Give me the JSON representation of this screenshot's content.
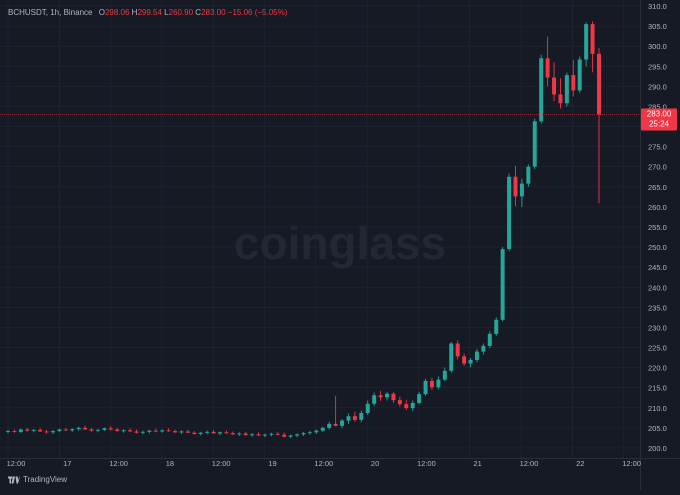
{
  "header": {
    "symbol": "BCHUSDT, 1h, Binance",
    "o_label": "O",
    "o_value": "298.06",
    "h_label": "H",
    "h_value": "299.54",
    "l_label": "L",
    "l_value": "260.90",
    "c_label": "C",
    "c_value": "283.00",
    "change": "−15.06 (−5.05%)"
  },
  "watermark": "coinglass",
  "brand": "TradingView",
  "price_tag": {
    "price": "283.00",
    "countdown": "25:24",
    "color": "#F23645"
  },
  "colors": {
    "up": "#26A69A",
    "down": "#F23645",
    "bg": "#161A25",
    "grid": "#232734",
    "text": "#B2B5BE"
  },
  "chart_data": {
    "type": "candlestick",
    "ylim": [
      197.5,
      311.5
    ],
    "yticks": [
      200.0,
      205.0,
      210.0,
      215.0,
      220.0,
      225.0,
      230.0,
      235.0,
      240.0,
      245.0,
      250.0,
      255.0,
      260.0,
      265.0,
      270.0,
      275.0,
      280.0,
      285.0,
      290.0,
      295.0,
      300.0,
      305.0,
      310.0
    ],
    "xticks": [
      "12:00",
      "17",
      "12:00",
      "18",
      "12:00",
      "19",
      "12:00",
      "20",
      "12:00",
      "21",
      "12:00",
      "22",
      "12:00"
    ],
    "last_price": 283.0,
    "candles": [
      [
        204.0,
        204.5,
        203.6,
        204.2
      ],
      [
        204.2,
        204.6,
        203.8,
        204.0
      ],
      [
        204.0,
        204.8,
        203.7,
        204.6
      ],
      [
        204.6,
        205.0,
        204.1,
        204.3
      ],
      [
        204.3,
        204.7,
        203.9,
        204.5
      ],
      [
        204.5,
        204.9,
        204.0,
        204.1
      ],
      [
        204.1,
        204.5,
        203.6,
        203.9
      ],
      [
        203.9,
        204.4,
        203.5,
        204.2
      ],
      [
        204.2,
        204.8,
        203.9,
        204.6
      ],
      [
        204.6,
        205.0,
        204.2,
        204.4
      ],
      [
        204.4,
        204.9,
        204.0,
        204.7
      ],
      [
        204.7,
        205.3,
        204.3,
        205.0
      ],
      [
        205.0,
        205.6,
        204.5,
        204.6
      ],
      [
        204.6,
        205.0,
        204.0,
        204.3
      ],
      [
        204.3,
        204.8,
        203.9,
        204.5
      ],
      [
        204.5,
        205.1,
        204.2,
        204.9
      ],
      [
        204.9,
        205.4,
        204.4,
        204.6
      ],
      [
        204.6,
        205.0,
        204.1,
        204.2
      ],
      [
        204.2,
        204.7,
        203.8,
        204.4
      ],
      [
        204.4,
        204.9,
        204.0,
        204.1
      ],
      [
        204.1,
        204.6,
        203.6,
        203.8
      ],
      [
        203.8,
        204.3,
        203.4,
        204.0
      ],
      [
        204.0,
        204.5,
        203.6,
        204.3
      ],
      [
        204.3,
        204.8,
        203.9,
        204.1
      ],
      [
        204.1,
        204.6,
        203.8,
        204.4
      ],
      [
        204.4,
        204.9,
        204.0,
        204.2
      ],
      [
        204.2,
        204.6,
        203.7,
        203.9
      ],
      [
        203.9,
        204.4,
        203.5,
        204.1
      ],
      [
        204.1,
        204.5,
        203.7,
        203.8
      ],
      [
        203.8,
        204.2,
        203.3,
        203.5
      ],
      [
        203.5,
        204.0,
        203.1,
        203.8
      ],
      [
        203.8,
        204.3,
        203.4,
        204.0
      ],
      [
        204.0,
        204.5,
        203.6,
        203.6
      ],
      [
        203.6,
        204.1,
        203.2,
        203.9
      ],
      [
        203.9,
        204.4,
        203.5,
        203.7
      ],
      [
        203.7,
        204.1,
        203.2,
        203.4
      ],
      [
        203.4,
        203.9,
        203.0,
        203.6
      ],
      [
        203.6,
        204.0,
        203.1,
        203.2
      ],
      [
        203.2,
        203.7,
        202.8,
        203.4
      ],
      [
        203.4,
        203.9,
        203.0,
        203.1
      ],
      [
        203.1,
        203.6,
        202.7,
        203.3
      ],
      [
        203.3,
        203.8,
        202.9,
        203.5
      ],
      [
        203.5,
        204.0,
        203.1,
        203.3
      ],
      [
        203.3,
        203.8,
        202.6,
        202.8
      ],
      [
        202.8,
        203.3,
        202.4,
        203.1
      ],
      [
        203.1,
        203.6,
        202.7,
        203.4
      ],
      [
        203.4,
        204.0,
        203.0,
        203.7
      ],
      [
        203.7,
        204.3,
        203.3,
        203.9
      ],
      [
        203.9,
        204.6,
        203.5,
        204.3
      ],
      [
        204.3,
        205.3,
        204.0,
        205.0
      ],
      [
        205.0,
        206.5,
        204.6,
        206.0
      ],
      [
        206.0,
        213.0,
        205.4,
        205.5
      ],
      [
        205.5,
        207.2,
        204.9,
        206.8
      ],
      [
        206.8,
        208.6,
        206.0,
        207.9
      ],
      [
        207.9,
        209.0,
        206.5,
        207.0
      ],
      [
        207.0,
        209.3,
        206.4,
        208.7
      ],
      [
        208.7,
        211.8,
        208.2,
        211.0
      ],
      [
        211.0,
        213.8,
        210.4,
        213.1
      ],
      [
        213.1,
        214.2,
        211.7,
        212.6
      ],
      [
        212.6,
        214.0,
        211.8,
        213.5
      ],
      [
        213.5,
        213.9,
        211.2,
        211.9
      ],
      [
        211.9,
        212.8,
        210.3,
        210.9
      ],
      [
        210.9,
        212.0,
        209.4,
        209.9
      ],
      [
        209.9,
        211.8,
        209.2,
        211.2
      ],
      [
        211.2,
        214.0,
        210.8,
        213.4
      ],
      [
        213.4,
        217.2,
        213.0,
        216.7
      ],
      [
        216.7,
        217.5,
        214.4,
        215.1
      ],
      [
        215.1,
        217.8,
        214.6,
        217.0
      ],
      [
        217.0,
        220.0,
        216.6,
        219.2
      ],
      [
        219.2,
        226.4,
        218.7,
        226.0
      ],
      [
        226.0,
        226.8,
        222.0,
        222.8
      ],
      [
        222.8,
        223.5,
        220.4,
        221.0
      ],
      [
        221.0,
        222.4,
        220.1,
        221.9
      ],
      [
        221.9,
        224.6,
        221.3,
        224.0
      ],
      [
        224.0,
        226.0,
        223.2,
        225.4
      ],
      [
        225.4,
        229.0,
        224.8,
        228.4
      ],
      [
        228.4,
        232.5,
        227.9,
        231.9
      ],
      [
        231.9,
        250.0,
        231.5,
        249.5
      ],
      [
        249.5,
        268.3,
        249.0,
        267.5
      ],
      [
        267.5,
        270.2,
        260.2,
        262.6
      ],
      [
        262.6,
        267.0,
        260.0,
        265.8
      ],
      [
        265.8,
        270.6,
        265.0,
        270.0
      ],
      [
        270.0,
        282.0,
        269.4,
        281.3
      ],
      [
        281.3,
        297.9,
        280.8,
        297.0
      ],
      [
        297.0,
        302.4,
        290.0,
        292.2
      ],
      [
        292.2,
        296.0,
        286.3,
        288.0
      ],
      [
        288.0,
        292.0,
        284.5,
        285.8
      ],
      [
        285.8,
        293.4,
        285.0,
        292.8
      ],
      [
        292.8,
        296.6,
        287.5,
        289.0
      ],
      [
        289.0,
        297.4,
        288.4,
        296.7
      ],
      [
        296.7,
        306.0,
        295.0,
        305.5
      ],
      [
        305.5,
        306.2,
        293.5,
        298.1
      ],
      [
        298.1,
        299.54,
        260.9,
        283.0
      ]
    ]
  }
}
